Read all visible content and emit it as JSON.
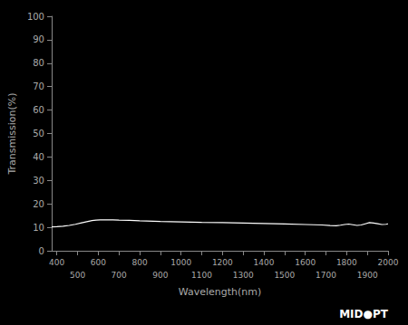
{
  "chart_data": {
    "type": "line",
    "xlabel": "Wavelength(nm)",
    "ylabel": "Transmission(%)",
    "annotation": "MID●PT",
    "x": [
      375,
      400,
      430,
      460,
      490,
      520,
      550,
      570,
      590,
      610,
      640,
      670,
      700,
      750,
      800,
      900,
      1000,
      1100,
      1200,
      1300,
      1400,
      1500,
      1600,
      1680,
      1720,
      1750,
      1770,
      1790,
      1810,
      1830,
      1850,
      1870,
      1890,
      1910,
      1930,
      1950,
      1970,
      1990,
      2000
    ],
    "values": [
      10.2,
      10.3,
      10.5,
      10.8,
      11.3,
      11.9,
      12.5,
      12.9,
      13.1,
      13.2,
      13.2,
      13.2,
      13.1,
      13.0,
      12.8,
      12.5,
      12.3,
      12.1,
      12.0,
      11.8,
      11.6,
      11.4,
      11.2,
      11.0,
      10.8,
      10.7,
      10.9,
      11.2,
      11.4,
      11.1,
      10.8,
      11.0,
      11.5,
      12.0,
      11.8,
      11.5,
      11.2,
      11.3,
      11.5
    ],
    "color": "#ffffff",
    "xlim": [
      375,
      2000
    ],
    "xticks": [
      400,
      500,
      600,
      700,
      800,
      900,
      1000,
      1100,
      1200,
      1300,
      1400,
      1500,
      1600,
      1700,
      1800,
      1900,
      2000
    ],
    "ylim": [
      0,
      100
    ],
    "yticks": [
      0,
      10,
      20,
      30,
      40,
      50,
      60,
      70,
      80,
      90,
      100
    ],
    "grid": false
  }
}
